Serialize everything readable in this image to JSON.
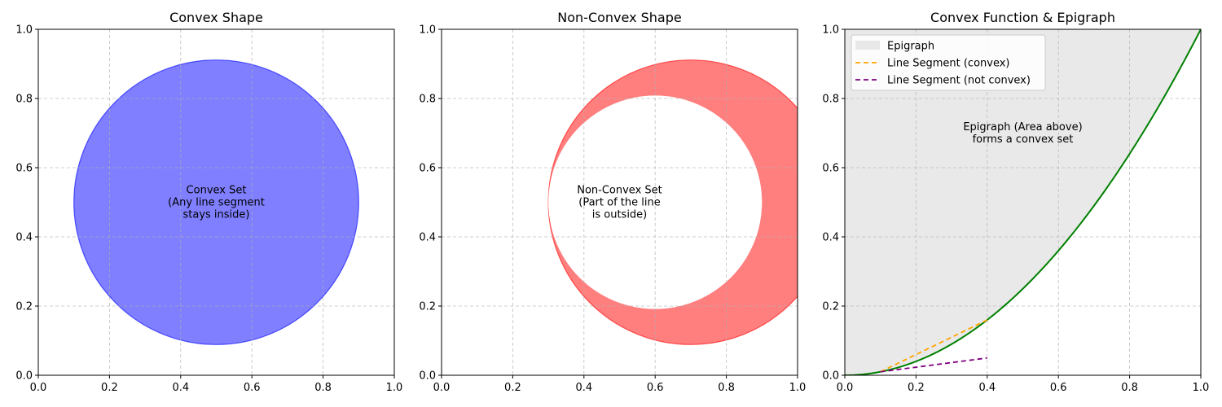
{
  "chart_data": [
    {
      "type": "area",
      "title": "Convex Shape",
      "xlim": [
        0,
        1
      ],
      "ylim": [
        0,
        1
      ],
      "x_ticks": [
        "0.0",
        "0.2",
        "0.4",
        "0.6",
        "0.8",
        "1.0"
      ],
      "y_ticks": [
        "0.0",
        "0.2",
        "0.4",
        "0.6",
        "0.8",
        "1.0"
      ],
      "grid": true,
      "shapes": [
        {
          "kind": "circle",
          "center": [
            0.5,
            0.5
          ],
          "radius": 0.4,
          "color": "#0000ff",
          "alpha": 0.5
        }
      ],
      "annotation": {
        "text": [
          "Convex Set",
          "(Any line segment",
          "stays inside)"
        ],
        "at": [
          0.5,
          0.5
        ]
      }
    },
    {
      "type": "area",
      "title": "Non-Convex Shape",
      "xlim": [
        0,
        1
      ],
      "ylim": [
        0,
        1
      ],
      "x_ticks": [
        "0.0",
        "0.2",
        "0.4",
        "0.6",
        "0.8",
        "1.0"
      ],
      "y_ticks": [
        "0.0",
        "0.2",
        "0.4",
        "0.6",
        "0.8",
        "1.0"
      ],
      "grid": true,
      "shapes": [
        {
          "kind": "circle",
          "center": [
            0.7,
            0.5
          ],
          "radius": 0.4,
          "color": "#ff0000",
          "alpha": 0.5
        },
        {
          "kind": "circle",
          "center": [
            0.6,
            0.5
          ],
          "radius": 0.3,
          "color": "#ffffff",
          "alpha": 1
        }
      ],
      "annotation": {
        "text": [
          "Non-Convex Set",
          "(Part of the line",
          "is outside)"
        ],
        "at": [
          0.5,
          0.5
        ]
      }
    },
    {
      "type": "line",
      "title": "Convex Function & Epigraph",
      "xlim": [
        0,
        1
      ],
      "ylim": [
        0,
        1
      ],
      "x_ticks": [
        "0.0",
        "0.2",
        "0.4",
        "0.6",
        "0.8",
        "1.0"
      ],
      "y_ticks": [
        "0.0",
        "0.2",
        "0.4",
        "0.6",
        "0.8",
        "1.0"
      ],
      "grid": true,
      "legend_position": "upper-left",
      "function": {
        "expression": "y = x^2",
        "domain": [
          0,
          1
        ],
        "color": "#008000"
      },
      "series": [
        {
          "name": "Epigraph",
          "kind": "fill-above-curve",
          "color": "#d3d3d3",
          "alpha": 0.5
        },
        {
          "name": "Line Segment (convex)",
          "kind": "dashed-line",
          "x": [
            0.1,
            0.4
          ],
          "y": [
            0.01,
            0.16
          ],
          "color": "#ffa500"
        },
        {
          "name": "Line Segment (not convex)",
          "kind": "dashed-line",
          "x": [
            0.1,
            0.4
          ],
          "y": [
            0.01,
            0.05
          ],
          "color": "#800080"
        }
      ],
      "annotation": {
        "text": [
          "Epigraph (Area above)",
          "forms a convex set"
        ],
        "at": [
          0.5,
          0.7
        ]
      }
    }
  ]
}
